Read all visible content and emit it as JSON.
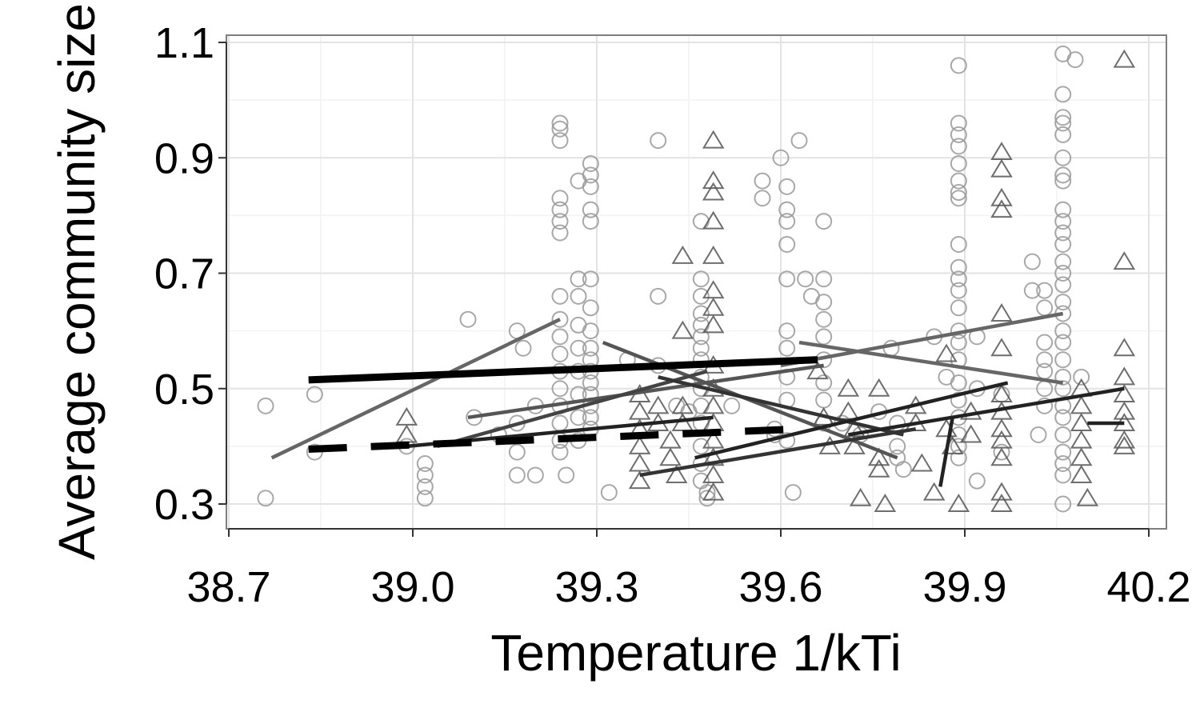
{
  "chart_data": {
    "type": "scatter",
    "xlabel": "Temperature 1/kTi",
    "ylabel": "Average community size",
    "xlim": [
      38.7,
      40.2
    ],
    "ylim": [
      0.25,
      1.11
    ],
    "xticks": [
      "38.7",
      "39.0",
      "39.3",
      "39.6",
      "39.9",
      "40.2"
    ],
    "yticks": [
      "0.3",
      "0.5",
      "0.7",
      "0.9",
      "1.1"
    ],
    "grid": true,
    "colors": {
      "circles": "#999999",
      "triangles": "#555555",
      "bold": "#000000"
    },
    "circles": [
      [
        38.76,
        0.47
      ],
      [
        38.76,
        0.31
      ],
      [
        38.84,
        0.49
      ],
      [
        38.84,
        0.39
      ],
      [
        38.99,
        0.4
      ],
      [
        39.02,
        0.37
      ],
      [
        39.02,
        0.35
      ],
      [
        39.02,
        0.33
      ],
      [
        39.02,
        0.31
      ],
      [
        39.09,
        0.62
      ],
      [
        39.1,
        0.45
      ],
      [
        39.14,
        0.42
      ],
      [
        39.17,
        0.6
      ],
      [
        39.18,
        0.57
      ],
      [
        39.17,
        0.44
      ],
      [
        39.17,
        0.39
      ],
      [
        39.17,
        0.35
      ],
      [
        39.2,
        0.47
      ],
      [
        39.2,
        0.35
      ],
      [
        39.24,
        0.96
      ],
      [
        39.24,
        0.95
      ],
      [
        39.24,
        0.93
      ],
      [
        39.24,
        0.83
      ],
      [
        39.24,
        0.81
      ],
      [
        39.24,
        0.79
      ],
      [
        39.24,
        0.77
      ],
      [
        39.24,
        0.66
      ],
      [
        39.24,
        0.62
      ],
      [
        39.24,
        0.59
      ],
      [
        39.24,
        0.56
      ],
      [
        39.24,
        0.53
      ],
      [
        39.24,
        0.5
      ],
      [
        39.24,
        0.47
      ],
      [
        39.24,
        0.44
      ],
      [
        39.24,
        0.41
      ],
      [
        39.24,
        0.39
      ],
      [
        39.25,
        0.35
      ],
      [
        39.27,
        0.86
      ],
      [
        39.27,
        0.69
      ],
      [
        39.27,
        0.66
      ],
      [
        39.27,
        0.61
      ],
      [
        39.27,
        0.57
      ],
      [
        39.27,
        0.53
      ],
      [
        39.27,
        0.49
      ],
      [
        39.27,
        0.45
      ],
      [
        39.27,
        0.41
      ],
      [
        39.29,
        0.89
      ],
      [
        39.29,
        0.87
      ],
      [
        39.29,
        0.85
      ],
      [
        39.29,
        0.81
      ],
      [
        39.29,
        0.79
      ],
      [
        39.29,
        0.69
      ],
      [
        39.29,
        0.64
      ],
      [
        39.29,
        0.6
      ],
      [
        39.29,
        0.57
      ],
      [
        39.29,
        0.55
      ],
      [
        39.29,
        0.53
      ],
      [
        39.29,
        0.51
      ],
      [
        39.29,
        0.49
      ],
      [
        39.29,
        0.47
      ],
      [
        39.29,
        0.45
      ],
      [
        39.29,
        0.43
      ],
      [
        39.32,
        0.32
      ],
      [
        39.35,
        0.55
      ],
      [
        39.4,
        0.93
      ],
      [
        39.4,
        0.66
      ],
      [
        39.4,
        0.54
      ],
      [
        39.43,
        0.47
      ],
      [
        39.45,
        0.46
      ],
      [
        39.47,
        0.79
      ],
      [
        39.47,
        0.69
      ],
      [
        39.47,
        0.66
      ],
      [
        39.47,
        0.63
      ],
      [
        39.47,
        0.61
      ],
      [
        39.47,
        0.59
      ],
      [
        39.47,
        0.57
      ],
      [
        39.47,
        0.55
      ],
      [
        39.47,
        0.52
      ],
      [
        39.47,
        0.5
      ],
      [
        39.47,
        0.47
      ],
      [
        39.47,
        0.44
      ],
      [
        39.47,
        0.4
      ],
      [
        39.47,
        0.37
      ],
      [
        39.47,
        0.34
      ],
      [
        39.48,
        0.32
      ],
      [
        39.48,
        0.31
      ],
      [
        39.52,
        0.47
      ],
      [
        39.57,
        0.86
      ],
      [
        39.57,
        0.83
      ],
      [
        39.59,
        0.42
      ],
      [
        39.59,
        0.43
      ],
      [
        39.6,
        0.9
      ],
      [
        39.61,
        0.85
      ],
      [
        39.61,
        0.81
      ],
      [
        39.61,
        0.79
      ],
      [
        39.61,
        0.75
      ],
      [
        39.61,
        0.69
      ],
      [
        39.61,
        0.6
      ],
      [
        39.61,
        0.57
      ],
      [
        39.61,
        0.52
      ],
      [
        39.61,
        0.48
      ],
      [
        39.61,
        0.41
      ],
      [
        39.62,
        0.32
      ],
      [
        39.63,
        0.93
      ],
      [
        39.64,
        0.69
      ],
      [
        39.65,
        0.66
      ],
      [
        39.67,
        0.79
      ],
      [
        39.67,
        0.69
      ],
      [
        39.67,
        0.65
      ],
      [
        39.67,
        0.62
      ],
      [
        39.67,
        0.59
      ],
      [
        39.67,
        0.55
      ],
      [
        39.67,
        0.51
      ],
      [
        39.67,
        0.48
      ],
      [
        39.67,
        0.44
      ],
      [
        39.7,
        0.44
      ],
      [
        39.73,
        0.42
      ],
      [
        39.76,
        0.46
      ],
      [
        39.78,
        0.57
      ],
      [
        39.79,
        0.44
      ],
      [
        39.79,
        0.4
      ],
      [
        39.79,
        0.38
      ],
      [
        39.8,
        0.36
      ],
      [
        39.85,
        0.59
      ],
      [
        39.87,
        0.52
      ],
      [
        39.89,
        1.06
      ],
      [
        39.89,
        0.96
      ],
      [
        39.89,
        0.94
      ],
      [
        39.89,
        0.92
      ],
      [
        39.89,
        0.89
      ],
      [
        39.89,
        0.86
      ],
      [
        39.89,
        0.84
      ],
      [
        39.89,
        0.83
      ],
      [
        39.89,
        0.75
      ],
      [
        39.89,
        0.71
      ],
      [
        39.89,
        0.69
      ],
      [
        39.89,
        0.67
      ],
      [
        39.89,
        0.64
      ],
      [
        39.89,
        0.6
      ],
      [
        39.89,
        0.58
      ],
      [
        39.89,
        0.55
      ],
      [
        39.89,
        0.51
      ],
      [
        39.89,
        0.48
      ],
      [
        39.89,
        0.45
      ],
      [
        39.89,
        0.42
      ],
      [
        39.89,
        0.4
      ],
      [
        39.89,
        0.38
      ],
      [
        39.92,
        0.59
      ],
      [
        39.92,
        0.5
      ],
      [
        39.92,
        0.34
      ],
      [
        39.96,
        0.49
      ],
      [
        39.96,
        0.39
      ],
      [
        40.01,
        0.72
      ],
      [
        40.01,
        0.67
      ],
      [
        40.02,
        0.42
      ],
      [
        40.03,
        0.67
      ],
      [
        40.03,
        0.64
      ],
      [
        40.03,
        0.58
      ],
      [
        40.03,
        0.55
      ],
      [
        40.03,
        0.53
      ],
      [
        40.03,
        0.5
      ],
      [
        40.03,
        0.47
      ],
      [
        40.06,
        1.08
      ],
      [
        40.06,
        1.01
      ],
      [
        40.06,
        0.97
      ],
      [
        40.06,
        0.96
      ],
      [
        40.06,
        0.94
      ],
      [
        40.06,
        0.9
      ],
      [
        40.06,
        0.87
      ],
      [
        40.06,
        0.86
      ],
      [
        40.06,
        0.81
      ],
      [
        40.06,
        0.79
      ],
      [
        40.06,
        0.77
      ],
      [
        40.06,
        0.75
      ],
      [
        40.06,
        0.72
      ],
      [
        40.06,
        0.7
      ],
      [
        40.06,
        0.68
      ],
      [
        40.06,
        0.65
      ],
      [
        40.06,
        0.63
      ],
      [
        40.06,
        0.6
      ],
      [
        40.06,
        0.58
      ],
      [
        40.06,
        0.55
      ],
      [
        40.06,
        0.52
      ],
      [
        40.06,
        0.5
      ],
      [
        40.06,
        0.47
      ],
      [
        40.06,
        0.45
      ],
      [
        40.06,
        0.42
      ],
      [
        40.06,
        0.39
      ],
      [
        40.06,
        0.37
      ],
      [
        40.06,
        0.35
      ],
      [
        40.06,
        0.3
      ],
      [
        40.08,
        1.07
      ],
      [
        40.09,
        0.52
      ]
    ],
    "triangles": [
      [
        38.99,
        0.45
      ],
      [
        38.99,
        0.42
      ],
      [
        39.37,
        0.49
      ],
      [
        39.37,
        0.46
      ],
      [
        39.37,
        0.43
      ],
      [
        39.37,
        0.4
      ],
      [
        39.37,
        0.37
      ],
      [
        39.37,
        0.34
      ],
      [
        39.4,
        0.47
      ],
      [
        39.4,
        0.44
      ],
      [
        39.42,
        0.41
      ],
      [
        39.42,
        0.38
      ],
      [
        39.43,
        0.35
      ],
      [
        39.44,
        0.73
      ],
      [
        39.44,
        0.6
      ],
      [
        39.44,
        0.47
      ],
      [
        39.44,
        0.44
      ],
      [
        39.49,
        0.93
      ],
      [
        39.49,
        0.86
      ],
      [
        39.49,
        0.84
      ],
      [
        39.49,
        0.79
      ],
      [
        39.49,
        0.73
      ],
      [
        39.49,
        0.67
      ],
      [
        39.49,
        0.64
      ],
      [
        39.49,
        0.61
      ],
      [
        39.49,
        0.54
      ],
      [
        39.49,
        0.5
      ],
      [
        39.49,
        0.47
      ],
      [
        39.49,
        0.44
      ],
      [
        39.49,
        0.41
      ],
      [
        39.49,
        0.38
      ],
      [
        39.49,
        0.35
      ],
      [
        39.49,
        0.32
      ],
      [
        39.66,
        0.53
      ],
      [
        39.67,
        0.45
      ],
      [
        39.68,
        0.4
      ],
      [
        39.71,
        0.5
      ],
      [
        39.71,
        0.46
      ],
      [
        39.72,
        0.43
      ],
      [
        39.72,
        0.4
      ],
      [
        39.73,
        0.31
      ],
      [
        39.76,
        0.5
      ],
      [
        39.76,
        0.38
      ],
      [
        39.76,
        0.36
      ],
      [
        39.77,
        0.3
      ],
      [
        39.82,
        0.47
      ],
      [
        39.82,
        0.44
      ],
      [
        39.83,
        0.37
      ],
      [
        39.85,
        0.32
      ],
      [
        39.87,
        0.56
      ],
      [
        39.87,
        0.43
      ],
      [
        39.88,
        0.4
      ],
      [
        39.89,
        0.3
      ],
      [
        39.91,
        0.46
      ],
      [
        39.91,
        0.42
      ],
      [
        39.96,
        0.91
      ],
      [
        39.96,
        0.88
      ],
      [
        39.96,
        0.83
      ],
      [
        39.96,
        0.81
      ],
      [
        39.96,
        0.63
      ],
      [
        39.96,
        0.57
      ],
      [
        39.96,
        0.49
      ],
      [
        39.96,
        0.46
      ],
      [
        39.96,
        0.43
      ],
      [
        39.96,
        0.41
      ],
      [
        39.96,
        0.38
      ],
      [
        39.96,
        0.32
      ],
      [
        39.96,
        0.3
      ],
      [
        40.09,
        0.5
      ],
      [
        40.09,
        0.47
      ],
      [
        40.09,
        0.44
      ],
      [
        40.09,
        0.41
      ],
      [
        40.09,
        0.38
      ],
      [
        40.09,
        0.35
      ],
      [
        40.1,
        0.31
      ],
      [
        40.16,
        1.07
      ],
      [
        40.16,
        0.72
      ],
      [
        40.16,
        0.57
      ],
      [
        40.16,
        0.52
      ],
      [
        40.16,
        0.49
      ],
      [
        40.16,
        0.46
      ],
      [
        40.16,
        0.44
      ],
      [
        40.16,
        0.41
      ],
      [
        40.16,
        0.4
      ]
    ],
    "fit_lines": [
      {
        "color": "#666666",
        "x": [
          38.77,
          39.24
        ],
        "y": [
          0.38,
          0.62
        ]
      },
      {
        "color": "#555555",
        "x": [
          39.09,
          39.67
        ],
        "y": [
          0.45,
          0.54
        ]
      },
      {
        "color": "#555555",
        "x": [
          39.31,
          39.79
        ],
        "y": [
          0.58,
          0.38
        ]
      },
      {
        "color": "#666666",
        "x": [
          39.63,
          40.06
        ],
        "y": [
          0.58,
          0.51
        ]
      },
      {
        "color": "#666666",
        "x": [
          39.6,
          40.06
        ],
        "y": [
          0.54,
          0.63
        ]
      },
      {
        "color": "#444444",
        "x": [
          39.04,
          39.48
        ],
        "y": [
          0.4,
          0.53
        ]
      },
      {
        "color": "#333333",
        "x": [
          39.4,
          39.8
        ],
        "y": [
          0.52,
          0.42
        ]
      },
      {
        "color": "#222222",
        "x": [
          38.99,
          39.49
        ],
        "y": [
          0.4,
          0.45
        ]
      },
      {
        "color": "#333333",
        "x": [
          39.37,
          39.82
        ],
        "y": [
          0.35,
          0.43
        ]
      },
      {
        "color": "#222222",
        "x": [
          39.46,
          39.97
        ],
        "y": [
          0.38,
          0.51
        ]
      },
      {
        "color": "#222222",
        "x": [
          39.71,
          40.16
        ],
        "y": [
          0.42,
          0.5
        ]
      },
      {
        "color": "#222222",
        "x": [
          39.86,
          39.88
        ],
        "y": [
          0.33,
          0.45
        ]
      },
      {
        "color": "#222222",
        "x": [
          40.1,
          40.16
        ],
        "y": [
          0.44,
          0.44
        ]
      }
    ],
    "bold_lines": [
      {
        "style": "solid",
        "x": [
          38.83,
          39.66
        ],
        "y": [
          0.515,
          0.55
        ]
      },
      {
        "style": "dashed",
        "x": [
          38.83,
          39.63
        ],
        "y": [
          0.395,
          0.43
        ]
      }
    ]
  }
}
